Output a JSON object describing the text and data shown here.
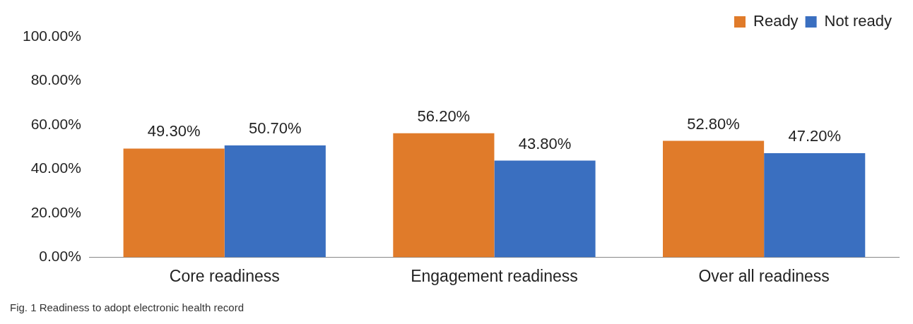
{
  "chart_data": {
    "type": "bar",
    "categories": [
      "Core readiness",
      "Engagement readiness",
      "Over all readiness"
    ],
    "series": [
      {
        "name": "Ready",
        "color": "#e07b2a",
        "values": [
          49.3,
          56.2,
          52.8
        ],
        "value_labels": [
          "49.30%",
          "56.20%",
          "52.80%"
        ]
      },
      {
        "name": "Not ready",
        "color": "#3a6fc0",
        "values": [
          50.7,
          43.8,
          47.2
        ],
        "value_labels": [
          "50.70%",
          "43.80%",
          "47.20%"
        ]
      }
    ],
    "ylim": [
      0,
      100
    ],
    "yticks": [
      {
        "value": 0,
        "label": "0.00%"
      },
      {
        "value": 20,
        "label": "20.00%"
      },
      {
        "value": 40,
        "label": "40.00%"
      },
      {
        "value": 60,
        "label": "60.00%"
      },
      {
        "value": 80,
        "label": "80.00%"
      },
      {
        "value": 100,
        "label": "100.00%"
      }
    ],
    "grid": false,
    "legend": "top right",
    "annotations": [
      "Fig. 1 Readiness to adopt electronic health record"
    ]
  }
}
